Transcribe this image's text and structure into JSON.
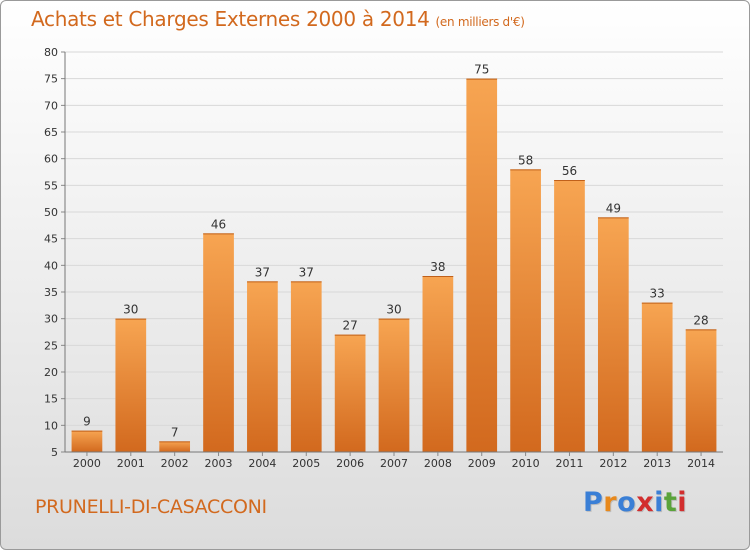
{
  "header": {
    "title": "Achats et Charges Externes 2000 à 2014",
    "subtitle": "(en milliers d'€)"
  },
  "footer": {
    "place": "PRUNELLI-DI-CASACCONI",
    "logo": "Proxiti",
    "logo_colors": [
      "#3a7fd6",
      "#e8891c",
      "#3a7fd6",
      "#d22e2e",
      "#3a7fd6",
      "#5aa33a",
      "#d22e2e"
    ]
  },
  "colors": {
    "bar_top": "#f7a552",
    "bar_bottom": "#d2691e",
    "accent": "#d2691e"
  },
  "chart_data": {
    "type": "bar",
    "title": "Achats et Charges Externes 2000 à 2014",
    "subtitle": "(en milliers d'€)",
    "categories": [
      "2000",
      "2001",
      "2002",
      "2003",
      "2004",
      "2005",
      "2006",
      "2007",
      "2008",
      "2009",
      "2010",
      "2011",
      "2012",
      "2013",
      "2014"
    ],
    "values": [
      9,
      30,
      7,
      46,
      37,
      37,
      27,
      30,
      38,
      75,
      58,
      56,
      49,
      33,
      28
    ],
    "data_labels": [
      "9",
      "30",
      "7",
      "46",
      "37",
      "37",
      "27",
      "30",
      "38",
      "75",
      "58",
      "56",
      "49",
      "33",
      "28"
    ],
    "ylim": [
      5,
      80
    ],
    "yticks": [
      5,
      10,
      15,
      20,
      25,
      30,
      35,
      40,
      45,
      50,
      55,
      60,
      65,
      70,
      75,
      80
    ],
    "ytick_labels": [
      "5",
      "10",
      "15",
      "20",
      "25",
      "30",
      "35",
      "40",
      "45",
      "50",
      "55",
      "60",
      "65",
      "70",
      "75",
      "80"
    ],
    "xlabel": "",
    "ylabel": "",
    "grid": true,
    "legend": "none"
  }
}
